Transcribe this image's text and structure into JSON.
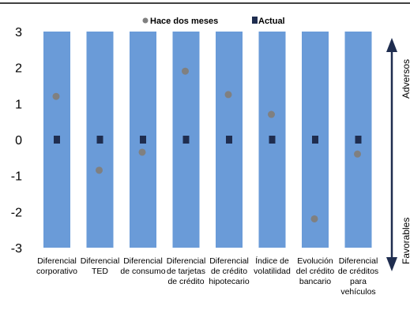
{
  "chart_data": {
    "type": "scatter",
    "categories": [
      [
        "Diferencial",
        "corporativo"
      ],
      [
        "Diferencial",
        "TED"
      ],
      [
        "Diferencial",
        "de consumo"
      ],
      [
        "Diferencial",
        "de tarjetas",
        "de crédito"
      ],
      [
        "Diferencial",
        "de crédito",
        "hipotecario"
      ],
      [
        "Índice de",
        "volatilidad"
      ],
      [
        "Evolución",
        "del crédito",
        "bancario"
      ],
      [
        "Diferencial",
        "de créditos",
        "para",
        "vehículos"
      ]
    ],
    "range": {
      "min": -3,
      "max": 3
    },
    "series": [
      {
        "name": "Hace dos meses",
        "marker": "circle",
        "color": "#808080",
        "values": [
          1.2,
          -0.85,
          -0.35,
          1.9,
          1.25,
          0.7,
          -2.2,
          -0.4
        ]
      },
      {
        "name": "Actual",
        "marker": "square",
        "color": "#1f2d4f",
        "values": [
          0,
          0,
          0,
          0,
          0,
          0,
          0,
          0
        ]
      }
    ],
    "yticks": [
      3,
      2,
      1,
      0,
      -1,
      -2,
      -3
    ],
    "ylim": [
      -3,
      3
    ],
    "bar_color": "#6a9bd8",
    "legend_position": "top",
    "side_labels": {
      "top": "Adversos",
      "bottom": "Favorables"
    }
  }
}
